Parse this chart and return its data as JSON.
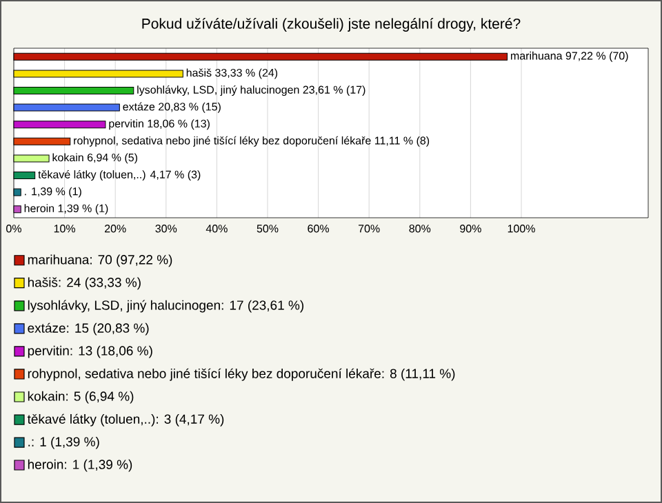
{
  "chart_data": {
    "type": "bar",
    "orientation": "horizontal",
    "title": "Pokud užíváte/užívali (zkoušeli) jste nelegální drogy, které?",
    "categories": [
      "marihuana 97,22 % (70)",
      "hašiš 33,33 % (24)",
      "lysohlávky, LSD, jiný halucinogen 23,61 % (17)",
      "extáze 20,83 % (15)",
      "pervitin 18,06 % (13)",
      "rohypnol, sedativa nebo jiné tišící léky bez doporučení lékaře 11,11 % (8)",
      "kokain 6,94 % (5)",
      "těkavé látky (toluen,..) 4,17 % (3)",
      ". 1,39 % (1)",
      "heroin 1,39 % (1)"
    ],
    "series": [
      {
        "name": "marihuana: 70 (97,22 %)",
        "color": "#c01808",
        "values": [
          97.22,
          null,
          null,
          null,
          null,
          null,
          null,
          null,
          null,
          null
        ]
      },
      {
        "name": "hašiš: 24 (33,33 %)",
        "color": "#f8e000",
        "values": [
          null,
          33.33,
          null,
          null,
          null,
          null,
          null,
          null,
          null,
          null
        ]
      },
      {
        "name": "lysohlávky, LSD, jiný halucinogen: 17 (23,61 %)",
        "color": "#20b820",
        "values": [
          null,
          null,
          23.61,
          null,
          null,
          null,
          null,
          null,
          null,
          null
        ]
      },
      {
        "name": "extáze: 15 (20,83 %)",
        "color": "#4870f0",
        "values": [
          null,
          null,
          null,
          20.83,
          null,
          null,
          null,
          null,
          null,
          null
        ]
      },
      {
        "name": "pervitin: 13 (18,06 %)",
        "color": "#c010c8",
        "values": [
          null,
          null,
          null,
          null,
          18.06,
          null,
          null,
          null,
          null,
          null
        ]
      },
      {
        "name": "rohypnol, sedativa nebo jiné tišící léky bez doporučení lékaře: 8 (11,11 %)",
        "color": "#e04008",
        "values": [
          null,
          null,
          null,
          null,
          null,
          11.11,
          null,
          null,
          null,
          null
        ]
      },
      {
        "name": "kokain: 5 (6,94 %)",
        "color": "#c8ff80",
        "values": [
          null,
          null,
          null,
          null,
          null,
          null,
          6.94,
          null,
          null,
          null
        ]
      },
      {
        "name": "těkavé látky (toluen,..): 3 (4,17 %)",
        "color": "#109058",
        "values": [
          null,
          null,
          null,
          null,
          null,
          null,
          null,
          4.17,
          null,
          null
        ]
      },
      {
        "name": ".: 1 (1,39 %)",
        "color": "#187888",
        "values": [
          null,
          null,
          null,
          null,
          null,
          null,
          null,
          null,
          1.39,
          null
        ]
      },
      {
        "name": "heroin: 1 (1,39 %)",
        "color": "#c050c0",
        "values": [
          null,
          null,
          null,
          null,
          null,
          null,
          null,
          null,
          null,
          1.39
        ]
      }
    ],
    "xlim": [
      0,
      125
    ],
    "xticks": [
      {
        "value": 0,
        "label": "0%"
      },
      {
        "value": 10,
        "label": "10%"
      },
      {
        "value": 20,
        "label": "20%"
      },
      {
        "value": 30,
        "label": "30%"
      },
      {
        "value": 40,
        "label": "40%"
      },
      {
        "value": 50,
        "label": "50%"
      },
      {
        "value": 60,
        "label": "60%"
      },
      {
        "value": 70,
        "label": "70%"
      },
      {
        "value": 80,
        "label": "80%"
      },
      {
        "value": 90,
        "label": "90%"
      },
      {
        "value": 100,
        "label": "100%"
      }
    ],
    "grid": "x",
    "legend": "bottom"
  }
}
